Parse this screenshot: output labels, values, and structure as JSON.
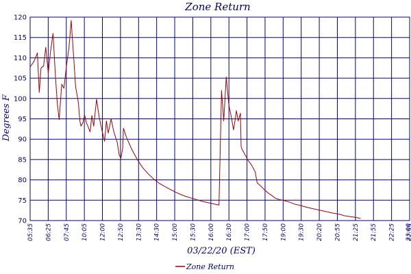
{
  "chart_data": {
    "type": "line",
    "title": "Zone Return",
    "xlabel": "03/22/20 (EST)",
    "ylabel": "Degrees F",
    "ylim": [
      70,
      120
    ],
    "yticks": [
      70,
      75,
      80,
      85,
      90,
      95,
      100,
      105,
      110,
      115,
      120
    ],
    "xlim": [
      "05:35",
      "23:00"
    ],
    "xticks": [
      "05:35",
      "06:25",
      "07:45",
      "10:05",
      "12:00",
      "12:50",
      "13:30",
      "14:30",
      "15:00",
      "15:30",
      "16:00",
      "16:30",
      "17:00",
      "17:50",
      "19:00",
      "19:30",
      "20:20",
      "20:55",
      "21:25",
      "21:55",
      "22:25",
      "22:55",
      "23:00"
    ],
    "grid": true,
    "legend": {
      "position": "bottom-center",
      "entries": [
        "Zone Return"
      ]
    },
    "colors": {
      "series": "#a00000",
      "grid": "#000080",
      "text": "#000080"
    },
    "series": [
      {
        "name": "Zone Return",
        "points": [
          [
            "05:35",
            107.8
          ],
          [
            "05:45",
            109.0
          ],
          [
            "05:55",
            111.2
          ],
          [
            "06:00",
            101.5
          ],
          [
            "06:05",
            107.5
          ],
          [
            "06:12",
            108.0
          ],
          [
            "06:18",
            112.6
          ],
          [
            "06:25",
            106.2
          ],
          [
            "06:31",
            111.5
          ],
          [
            "06:38",
            116.0
          ],
          [
            "06:45",
            105.0
          ],
          [
            "06:50",
            98.5
          ],
          [
            "06:55",
            94.8
          ],
          [
            "07:02",
            103.5
          ],
          [
            "07:08",
            102.5
          ],
          [
            "07:15",
            108.0
          ],
          [
            "07:22",
            112.5
          ],
          [
            "07:28",
            119.2
          ],
          [
            "07:35",
            110.0
          ],
          [
            "07:40",
            103.0
          ],
          [
            "07:45",
            100.5
          ],
          [
            "07:48",
            98.8
          ],
          [
            "07:52",
            94.5
          ],
          [
            "07:55",
            93.2
          ],
          [
            "08:00",
            94.0
          ],
          [
            "08:05",
            96.0
          ],
          [
            "08:10",
            94.0
          ],
          [
            "08:15",
            93.0
          ],
          [
            "08:20",
            91.8
          ],
          [
            "08:25",
            95.8
          ],
          [
            "08:30",
            93.2
          ],
          [
            "08:38",
            99.8
          ],
          [
            "08:45",
            95.5
          ],
          [
            "08:52",
            92.5
          ],
          [
            "09:00",
            89.5
          ],
          [
            "09:05",
            94.5
          ],
          [
            "09:10",
            91.5
          ],
          [
            "09:18",
            95.0
          ],
          [
            "09:25",
            92.0
          ],
          [
            "09:30",
            90.5
          ],
          [
            "09:35",
            89.2
          ],
          [
            "09:40",
            86.2
          ],
          [
            "09:45",
            85.3
          ],
          [
            "09:50",
            88.0
          ],
          [
            "09:52",
            92.7
          ],
          [
            "10:00",
            90.5
          ],
          [
            "10:05",
            89.5
          ],
          [
            "10:15",
            87.5
          ],
          [
            "10:30",
            85.0
          ],
          [
            "10:45",
            83.0
          ],
          [
            "11:00",
            81.5
          ],
          [
            "11:15",
            80.2
          ],
          [
            "11:30",
            79.2
          ],
          [
            "11:45",
            78.4
          ],
          [
            "12:00",
            77.7
          ],
          [
            "12:15",
            77.0
          ],
          [
            "12:30",
            76.4
          ],
          [
            "12:45",
            75.9
          ],
          [
            "13:00",
            75.5
          ],
          [
            "13:15",
            75.1
          ],
          [
            "13:30",
            74.7
          ],
          [
            "13:45",
            74.4
          ],
          [
            "14:00",
            74.1
          ],
          [
            "14:10",
            73.9
          ],
          [
            "14:15",
            73.8
          ],
          [
            "14:22",
            102.0
          ],
          [
            "14:28",
            94.5
          ],
          [
            "14:35",
            105.3
          ],
          [
            "14:42",
            98.5
          ],
          [
            "14:50",
            95.0
          ],
          [
            "14:55",
            92.3
          ],
          [
            "15:00",
            95.0
          ],
          [
            "15:03",
            97.0
          ],
          [
            "15:08",
            94.5
          ],
          [
            "15:14",
            96.4
          ],
          [
            "15:16",
            88.2
          ],
          [
            "15:18",
            87.6
          ],
          [
            "15:25",
            86.5
          ],
          [
            "15:35",
            84.8
          ],
          [
            "15:45",
            83.6
          ],
          [
            "15:55",
            81.9
          ],
          [
            "16:00",
            79.3
          ],
          [
            "16:10",
            78.5
          ],
          [
            "16:20",
            77.6
          ],
          [
            "16:30",
            76.8
          ],
          [
            "16:40",
            76.2
          ],
          [
            "16:50",
            75.5
          ],
          [
            "17:00",
            75.2
          ],
          [
            "17:15",
            74.9
          ],
          [
            "17:30",
            74.5
          ],
          [
            "17:45",
            74.0
          ],
          [
            "18:00",
            73.7
          ],
          [
            "18:15",
            73.3
          ],
          [
            "18:30",
            73.0
          ],
          [
            "18:45",
            72.7
          ],
          [
            "19:00",
            72.4
          ],
          [
            "19:15",
            72.1
          ],
          [
            "19:30",
            71.8
          ],
          [
            "19:45",
            71.6
          ],
          [
            "20:00",
            71.2
          ],
          [
            "20:15",
            71.0
          ],
          [
            "20:30",
            70.8
          ],
          [
            "20:40",
            70.6
          ],
          [
            "20:45",
            70.5
          ]
        ]
      }
    ]
  }
}
